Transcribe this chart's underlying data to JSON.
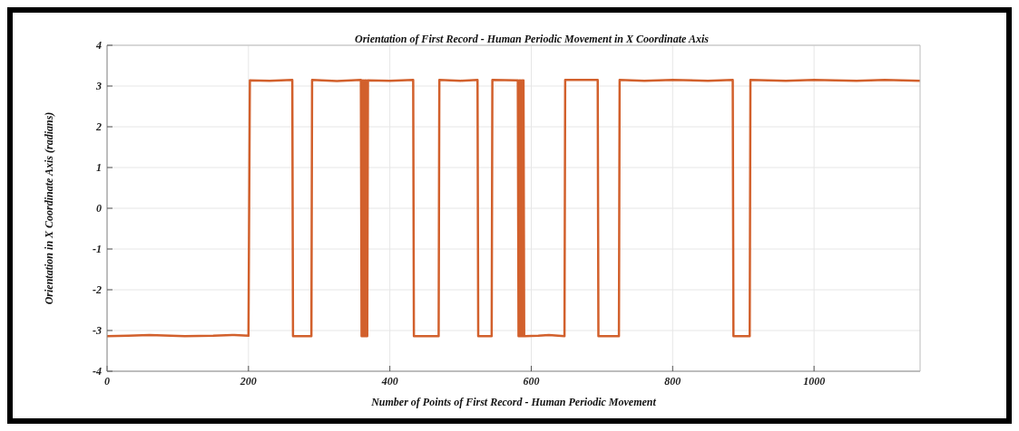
{
  "chart_data": {
    "type": "line",
    "title": "Orientation of First Record - Human Periodic Movement in X Coordinate Axis",
    "xlabel": "Number of Points of First Record - Human Periodic Movement",
    "ylabel": "Orientation in X Coordinate Axis (radians)",
    "x": [
      0,
      30,
      60,
      110,
      150,
      180,
      200,
      202,
      230,
      262,
      263,
      289,
      290,
      325,
      359,
      360,
      361,
      362,
      363,
      364,
      365,
      366,
      367,
      368,
      369,
      400,
      433,
      434,
      469,
      470,
      500,
      524,
      525,
      544,
      545,
      581,
      582,
      583,
      584,
      585,
      586,
      587,
      588,
      589,
      590,
      591,
      610,
      625,
      647,
      648,
      694,
      695,
      724,
      725,
      760,
      800,
      850,
      885,
      886,
      909,
      910,
      960,
      1000,
      1060,
      1100,
      1150
    ],
    "series": [
      {
        "color": "#d2602c",
        "values": [
          -3.14,
          -3.13,
          -3.11,
          -3.14,
          -3.13,
          -3.11,
          -3.13,
          3.14,
          3.13,
          3.15,
          -3.14,
          -3.14,
          3.15,
          3.12,
          3.15,
          -3.14,
          3.14,
          -3.14,
          3.14,
          -3.14,
          3.14,
          -3.14,
          3.14,
          -3.14,
          3.14,
          3.13,
          3.15,
          -3.14,
          -3.14,
          3.15,
          3.13,
          3.15,
          -3.14,
          -3.14,
          3.15,
          3.14,
          -3.14,
          3.14,
          -3.14,
          3.14,
          -3.14,
          3.14,
          -3.14,
          3.14,
          -3.14,
          -3.14,
          -3.13,
          -3.11,
          -3.14,
          3.15,
          3.15,
          -3.14,
          -3.14,
          3.15,
          3.13,
          3.15,
          3.13,
          3.15,
          -3.14,
          -3.14,
          3.15,
          3.13,
          3.15,
          3.13,
          3.15,
          3.13
        ]
      }
    ],
    "xlim": [
      0,
      1150
    ],
    "xticks": [
      0,
      200,
      400,
      600,
      800,
      1000
    ],
    "ylim": [
      -4,
      4
    ],
    "yticks": [
      -4,
      -3,
      -2,
      -1,
      0,
      1,
      2,
      3,
      4
    ],
    "grid": true,
    "marker": "none",
    "line_style": "solid"
  }
}
